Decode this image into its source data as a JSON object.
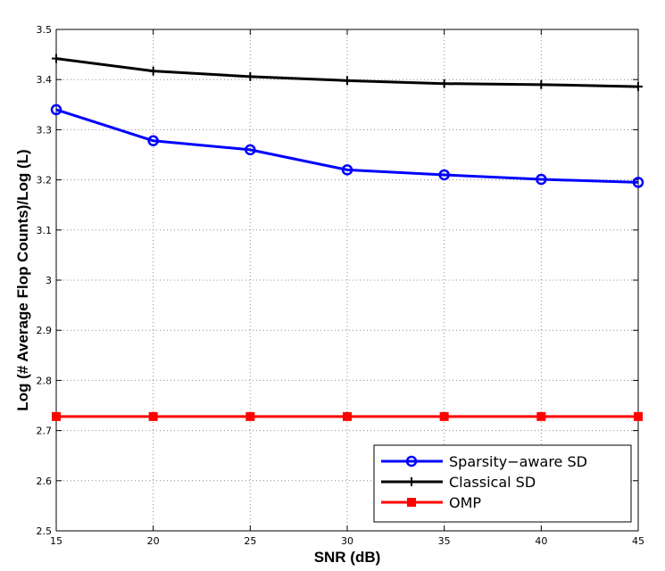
{
  "chart_data": {
    "type": "line",
    "title": "",
    "xlabel": "SNR (dB)",
    "ylabel": "Log (# Average Flop Counts)/Log (L)",
    "x": [
      15,
      20,
      25,
      30,
      35,
      40,
      45
    ],
    "xlim": [
      15,
      45
    ],
    "ylim": [
      2.5,
      3.5
    ],
    "xticks": [
      "15",
      "20",
      "25",
      "30",
      "35",
      "40",
      "45"
    ],
    "yticks": [
      "2.5",
      "2.6",
      "2.7",
      "2.8",
      "2.9",
      "3",
      "3.1",
      "3.2",
      "3.3",
      "3.4",
      "3.5"
    ],
    "grid": true,
    "legend_position": "bottom-right",
    "series": [
      {
        "name": "Sparsity−aware SD",
        "color": "#0000ff",
        "marker": "circle",
        "values": [
          3.34,
          3.278,
          3.26,
          3.22,
          3.21,
          3.201,
          3.195
        ]
      },
      {
        "name": "Classical SD",
        "color": "#000000",
        "marker": "plus",
        "values": [
          3.442,
          3.417,
          3.406,
          3.398,
          3.392,
          3.39,
          3.386
        ]
      },
      {
        "name": "OMP",
        "color": "#ff0000",
        "marker": "square",
        "values": [
          2.728,
          2.728,
          2.728,
          2.728,
          2.728,
          2.728,
          2.728
        ]
      }
    ]
  }
}
